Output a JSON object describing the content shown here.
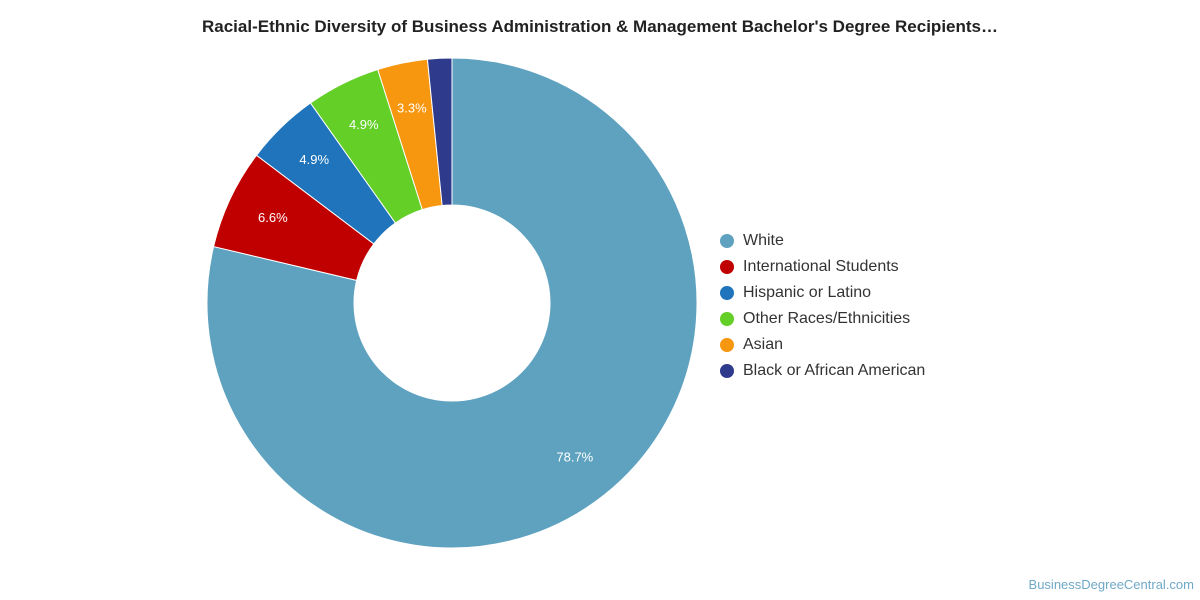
{
  "chart_data": {
    "type": "pie",
    "title": "Racial-Ethnic Diversity of Business Administration & Management Bachelor's Degree Recipients…",
    "donut": true,
    "legend_position": "right",
    "slices": [
      {
        "name": "White",
        "value": 78.7,
        "label": "78.7%",
        "color": "#5ea2c0"
      },
      {
        "name": "International Students",
        "value": 6.6,
        "label": "6.6%",
        "color": "#c00000"
      },
      {
        "name": "Hispanic or Latino",
        "value": 4.9,
        "label": "4.9%",
        "color": "#1f74bc"
      },
      {
        "name": "Other Races/Ethnicities",
        "value": 4.9,
        "label": "4.9%",
        "color": "#63cf27"
      },
      {
        "name": "Asian",
        "value": 3.3,
        "label": "3.3%",
        "color": "#f7960f"
      },
      {
        "name": "Black or African American",
        "value": 1.6,
        "label": "",
        "color": "#2e3a8c"
      }
    ]
  },
  "credit": "BusinessDegreeCentral.com"
}
